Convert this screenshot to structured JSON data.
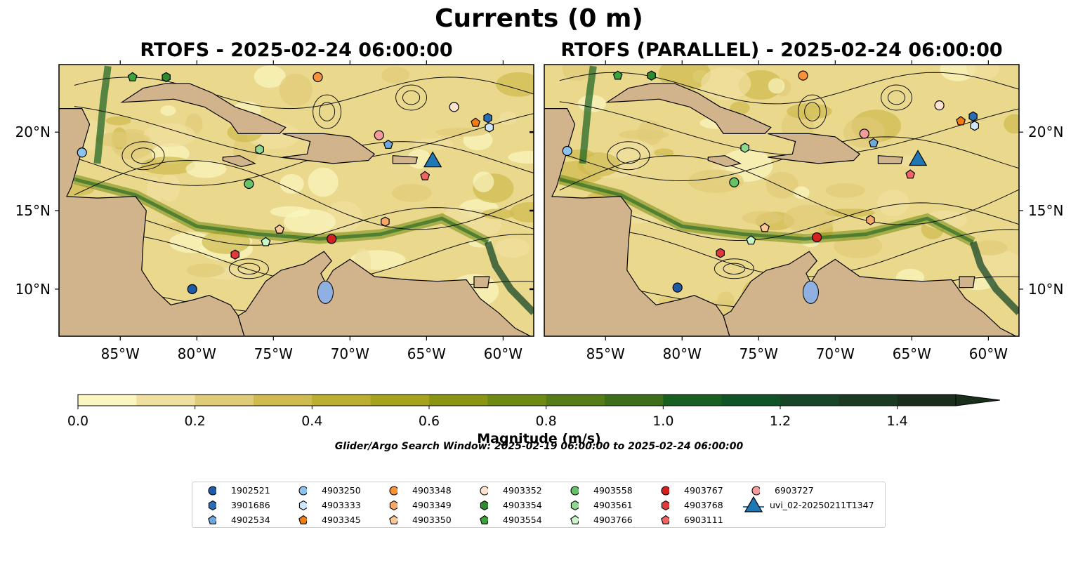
{
  "figure": {
    "suptitle": "Currents (0 m)",
    "left_title": "RTOFS - 2025-02-24 06:00:00",
    "right_title": "RTOFS (PARALLEL) - 2025-02-24 06:00:00",
    "search_window": "Glider/Argo Search Window: 2025-02-19 06:00:00 to 2025-02-24 06:00:00"
  },
  "chart_data": {
    "type": "heatmap",
    "title": "Currents (0 m)",
    "panels": [
      "RTOFS - 2025-02-24 06:00:00",
      "RTOFS (PARALLEL) - 2025-02-24 06:00:00"
    ],
    "map_extent": {
      "lon": [
        -89,
        -58
      ],
      "lat": [
        7,
        24.3
      ]
    },
    "lon_ticks": [
      -85,
      -80,
      -75,
      -70,
      -65,
      -60
    ],
    "lon_tick_labels": [
      "85°W",
      "80°W",
      "75°W",
      "70°W",
      "65°W",
      "60°W"
    ],
    "lat_ticks": [
      10,
      15,
      20
    ],
    "lat_tick_labels": [
      "10°N",
      "15°N",
      "20°N"
    ],
    "colorbar": {
      "label": "Magnitude (m/s)",
      "range": [
        0,
        1.5
      ],
      "extend": "max",
      "ticks": [
        0.0,
        0.2,
        0.4,
        0.6,
        0.8,
        1.0,
        1.2,
        1.4
      ],
      "tick_labels": [
        "0.0",
        "0.2",
        "0.4",
        "0.6",
        "0.8",
        "1.0",
        "1.2",
        "1.4"
      ],
      "colors": [
        "#fbf5c0",
        "#efe0a0",
        "#e0cb78",
        "#cfbb4f",
        "#bcae30",
        "#a5a21c",
        "#8a9611",
        "#6f8a12",
        "#557c16",
        "#3d6e1a",
        "#18601f",
        "#0f5326",
        "#174527",
        "#1b3a22",
        "#1a2e1c"
      ]
    },
    "platforms": [
      {
        "id": "1902521",
        "marker": "circle",
        "color": "#1f5aa6",
        "lon": -80.3,
        "lat": 10.0
      },
      {
        "id": "3901686",
        "marker": "hexagon",
        "color": "#2a6db3",
        "lon": -61.0,
        "lat": 20.9
      },
      {
        "id": "4902534",
        "marker": "pentagon",
        "color": "#6fa8dc",
        "lon": -67.5,
        "lat": 19.2
      },
      {
        "id": "4903250",
        "marker": "circle",
        "color": "#8cc2ee",
        "lon": -87.5,
        "lat": 18.7
      },
      {
        "id": "4903333",
        "marker": "hexagon",
        "color": "#cfe6fa",
        "lon": -60.9,
        "lat": 20.3
      },
      {
        "id": "4903345",
        "marker": "pentagon",
        "color": "#f07c12",
        "lon": -61.8,
        "lat": 20.6
      },
      {
        "id": "4903348",
        "marker": "circle",
        "color": "#f5923a",
        "lon": -72.1,
        "lat": 23.5
      },
      {
        "id": "4903349",
        "marker": "hexagon",
        "color": "#f5a868",
        "lon": -67.7,
        "lat": 14.3
      },
      {
        "id": "4903350",
        "marker": "pentagon",
        "color": "#fbc896",
        "lon": -74.6,
        "lat": 13.8
      },
      {
        "id": "4903352",
        "marker": "circle",
        "color": "#fde3cf",
        "lon": -63.2,
        "lat": 21.6
      },
      {
        "id": "4903354",
        "marker": "hexagon",
        "color": "#2d8a2d",
        "lon": -82.0,
        "lat": 23.5
      },
      {
        "id": "4903554",
        "marker": "pentagon",
        "color": "#3aa43a",
        "lon": -84.2,
        "lat": 23.5
      },
      {
        "id": "4903558",
        "marker": "circle",
        "color": "#66c266",
        "lon": -76.6,
        "lat": 16.7
      },
      {
        "id": "4903561",
        "marker": "hexagon",
        "color": "#8fd88f",
        "lon": -75.9,
        "lat": 18.9
      },
      {
        "id": "4903766",
        "marker": "pentagon",
        "color": "#c9f5c9",
        "lon": -75.5,
        "lat": 13.0
      },
      {
        "id": "4903767",
        "marker": "circle",
        "color": "#d42020",
        "lon": -71.2,
        "lat": 13.2
      },
      {
        "id": "4903768",
        "marker": "hexagon",
        "color": "#e03a3a",
        "lon": -77.5,
        "lat": 12.2
      },
      {
        "id": "6903111",
        "marker": "pentagon",
        "color": "#f06464",
        "lon": -65.1,
        "lat": 17.2
      },
      {
        "id": "6903727",
        "marker": "circle",
        "color": "#f49a9a",
        "lon": -68.1,
        "lat": 19.8
      },
      {
        "id": "uvi_02-20250211T1347",
        "marker": "triangle",
        "color": "#1f77b4",
        "lon": -64.6,
        "lat": 18.1
      }
    ]
  }
}
